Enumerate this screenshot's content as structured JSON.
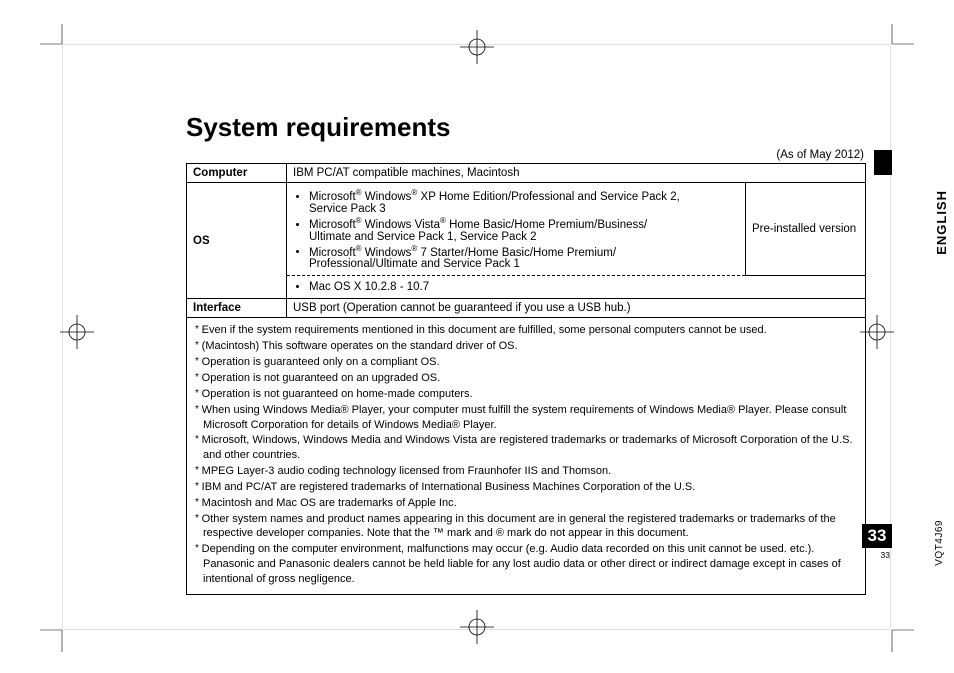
{
  "heading": "System requirements",
  "asof": "(As of May 2012)",
  "lang_tab": "ENGLISH",
  "doc_code": "VQT4J69",
  "page_number": "33",
  "page_number_small": "33",
  "table": {
    "row_computer": {
      "label": "Computer",
      "value": "IBM PC/AT compatible machines, Macintosh"
    },
    "row_os": {
      "label": "OS",
      "win": [
        {
          "a": "Microsoft",
          "b": " Windows",
          "c": " XP Home Edition/Professional and Service Pack 2,",
          "d": "Service Pack 3"
        },
        {
          "a": "Microsoft",
          "b": " Windows Vista",
          "c": " Home Basic/Home Premium/Business/",
          "d": "Ultimate and Service Pack 1, Service Pack 2"
        },
        {
          "a": "Microsoft",
          "b": " Windows",
          "c": " 7 Starter/Home Basic/Home Premium/",
          "d": "Professional/Ultimate and Service Pack 1"
        }
      ],
      "right": "Pre-installed version",
      "mac": "Mac OS X 10.2.8 - 10.7"
    },
    "row_interface": {
      "label": "Interface",
      "value": "USB port (Operation cannot be guaranteed if you use a USB hub.)"
    }
  },
  "notes": [
    "Even if the system requirements mentioned in this document are fulfilled, some personal computers cannot be used.",
    "(Macintosh) This software operates on the standard driver of OS.",
    "Operation is guaranteed only on a compliant OS.",
    "Operation is not guaranteed on an upgraded OS.",
    "Operation is not guaranteed on home-made computers.",
    "When using Windows Media® Player, your computer must fulfill the system requirements of Windows Media® Player. Please consult Microsoft Corporation for details of Windows Media® Player.",
    "Microsoft, Windows, Windows Media and Windows Vista are registered trademarks or trademarks of Microsoft Corporation of the U.S. and other countries.",
    "MPEG Layer-3 audio coding technology licensed from Fraunhofer IIS and Thomson.",
    "IBM and PC/AT are registered trademarks of International Business Machines Corporation of the U.S.",
    "Macintosh and Mac OS are trademarks of Apple Inc.",
    "Other system names and product names appearing in this document are in general the registered trademarks or trademarks of the respective developer companies. Note that the ™ mark and ® mark do not appear in this document.",
    "Depending on the computer environment, malfunctions may occur (e.g. Audio data recorded on this unit cannot be used. etc.). Panasonic and Panasonic dealers cannot be held liable for any lost audio data or other direct or indirect damage except in cases of intentional of gross negligence."
  ]
}
